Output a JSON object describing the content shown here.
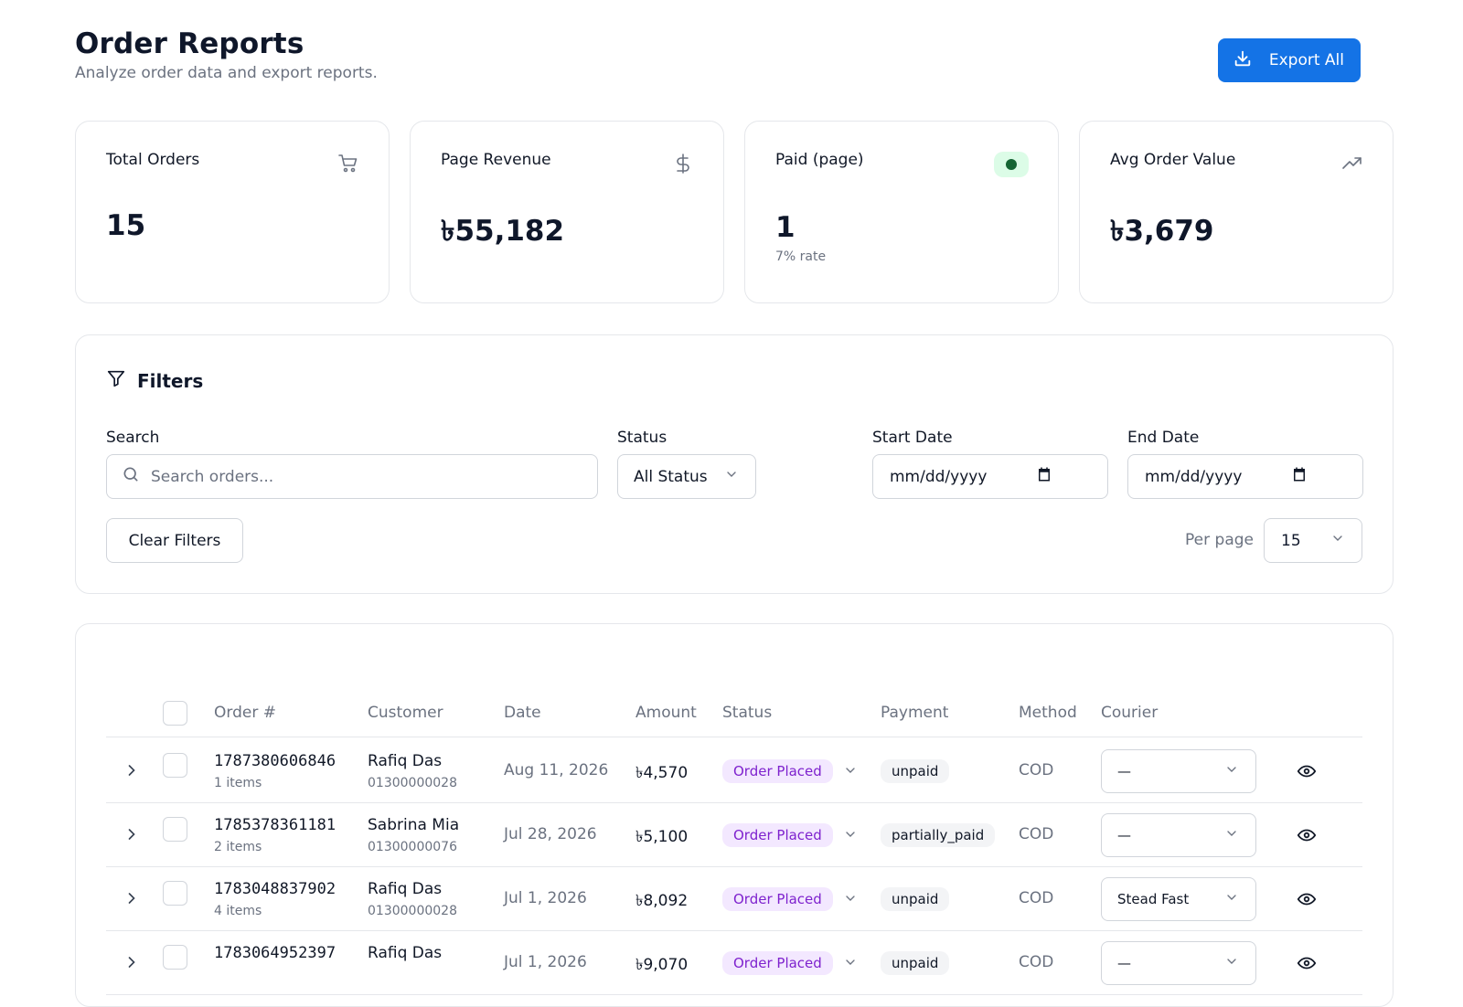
{
  "header": {
    "title": "Order Reports",
    "subtitle": "Analyze order data and export reports.",
    "export_label": "Export All"
  },
  "cards": [
    {
      "label": "Total Orders",
      "value": "15",
      "sub": "",
      "icon": "cart-icon"
    },
    {
      "label": "Page Revenue",
      "value": "৳55,182",
      "sub": "",
      "icon": "dollar-icon"
    },
    {
      "label": "Paid (page)",
      "value": "1",
      "sub": "7% rate",
      "icon": "status-dot-icon"
    },
    {
      "label": "Avg Order Value",
      "value": "৳3,679",
      "sub": "",
      "icon": "trending-up-icon"
    }
  ],
  "filters": {
    "title": "Filters",
    "search_label": "Search",
    "search_placeholder": "Search orders...",
    "status_label": "Status",
    "status_value": "All Status",
    "start_label": "Start Date",
    "start_value": "mm/dd/yyyy",
    "end_label": "End Date",
    "end_value": "mm/dd/yyyy",
    "clear_label": "Clear Filters",
    "per_page_label": "Per page",
    "per_page_value": "15"
  },
  "table": {
    "columns": [
      "Order #",
      "Customer",
      "Date",
      "Amount",
      "Status",
      "Payment",
      "Method",
      "Courier"
    ],
    "rows": [
      {
        "order": "1787380606846",
        "items": "1 items",
        "customer": "Rafiq Das",
        "phone": "01300000028",
        "date": "Aug 11, 2026",
        "amount": "৳4,570",
        "status": "Order Placed",
        "payment": "unpaid",
        "method": "COD",
        "courier": "—"
      },
      {
        "order": "1785378361181",
        "items": "2 items",
        "customer": "Sabrina Mia",
        "phone": "01300000076",
        "date": "Jul 28, 2026",
        "amount": "৳5,100",
        "status": "Order Placed",
        "payment": "partially_paid",
        "method": "COD",
        "courier": "—"
      },
      {
        "order": "1783048837902",
        "items": "4 items",
        "customer": "Rafiq Das",
        "phone": "01300000028",
        "date": "Jul 1, 2026",
        "amount": "৳8,092",
        "status": "Order Placed",
        "payment": "unpaid",
        "method": "COD",
        "courier": "Stead Fast"
      },
      {
        "order": "1783064952397",
        "items": "",
        "customer": "Rafiq Das",
        "phone": "",
        "date": "Jul 1, 2026",
        "amount": "৳9,070",
        "status": "Order Placed",
        "payment": "unpaid",
        "method": "COD",
        "courier": "—"
      }
    ]
  },
  "colors": {
    "accent": "#1473e6",
    "status_pill_bg": "#f3e8ff",
    "status_pill_text": "#7e22ce",
    "paid_badge_bg": "#dcfce7",
    "paid_dot": "#166534"
  }
}
